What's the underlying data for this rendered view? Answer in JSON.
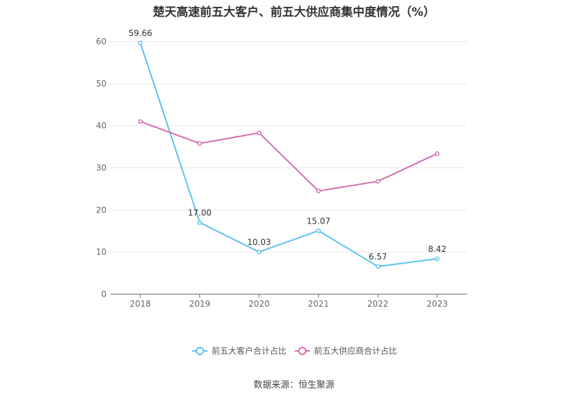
{
  "chart_data": {
    "type": "line",
    "title": "楚天高速前五大客户、前五大供应商集中度情况（%）",
    "categories": [
      "2018",
      "2019",
      "2020",
      "2021",
      "2022",
      "2023"
    ],
    "series": [
      {
        "name": "前五大客户合计占比",
        "values": [
          59.66,
          17.0,
          10.03,
          15.07,
          6.57,
          8.42
        ],
        "labels": [
          "59.66",
          "17.00",
          "10.03",
          "15.07",
          "6.57",
          "8.42"
        ],
        "color": "#5bc2f0"
      },
      {
        "name": "前五大供应商合计占比",
        "values": [
          41.0,
          35.8,
          38.3,
          24.5,
          26.8,
          33.4
        ],
        "color": "#d66bb0"
      }
    ],
    "y_ticks": [
      0,
      10,
      20,
      30,
      40,
      50,
      60
    ],
    "ylim": [
      0,
      60
    ],
    "grid": true,
    "legend_position": "bottom"
  },
  "source": "数据来源：恒生聚源"
}
